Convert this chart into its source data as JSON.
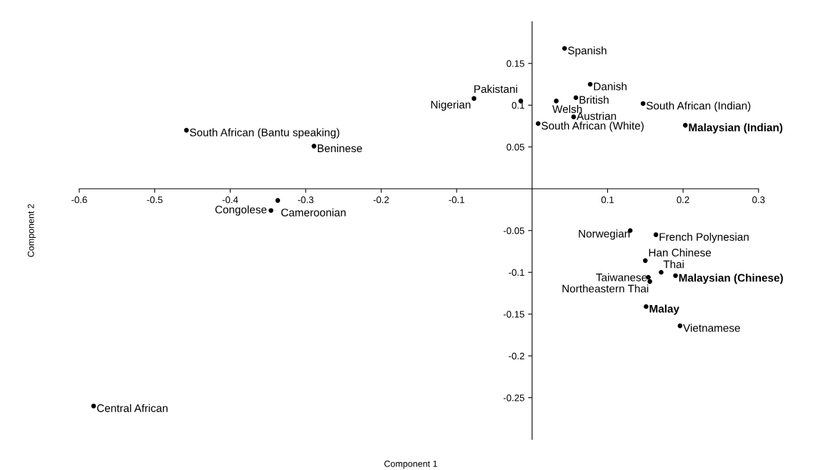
{
  "chart_data": {
    "type": "scatter",
    "xlabel": "Component 1",
    "ylabel": "Component 2",
    "xlim": [
      -0.6,
      0.3
    ],
    "ylim": [
      -0.3,
      0.2
    ],
    "xticks": [
      -0.6,
      -0.5,
      -0.4,
      -0.3,
      -0.2,
      -0.1,
      0.1,
      0.2,
      0.3
    ],
    "yticks": [
      -0.25,
      -0.2,
      -0.15,
      -0.1,
      -0.05,
      0.05,
      0.1,
      0.15
    ],
    "grid": false,
    "legend": false,
    "marker": "circle",
    "series": [
      {
        "color": "#000000",
        "x": [
          0.043,
          0.077,
          -0.015,
          -0.077,
          0.032,
          0.058,
          0.147,
          0.055,
          0.008,
          -0.458,
          -0.289,
          -0.337,
          -0.346,
          -0.581,
          0.13,
          0.164,
          0.15,
          0.171,
          0.154,
          0.156,
          0.196
        ],
        "values": [
          0.168,
          0.125,
          0.105,
          0.108,
          0.105,
          0.109,
          0.102,
          0.086,
          0.078,
          0.07,
          0.051,
          -0.014,
          -0.026,
          -0.26,
          -0.05,
          -0.055,
          -0.086,
          -0.1,
          -0.106,
          -0.111,
          -0.164
        ]
      },
      {
        "color": "#000000",
        "x": [
          0.203,
          0.19,
          0.151
        ],
        "values": [
          0.076,
          -0.104,
          -0.141
        ]
      }
    ],
    "annotations": [
      {
        "text": "Spanish",
        "x": 0.043,
        "y": 0.168
      },
      {
        "text": "Danish",
        "x": 0.077,
        "y": 0.125
      },
      {
        "text": "Pakistani",
        "x": -0.015,
        "y": 0.105
      },
      {
        "text": "Nigerian",
        "x": -0.077,
        "y": 0.108
      },
      {
        "text": "Welsh",
        "x": 0.032,
        "y": 0.105
      },
      {
        "text": "British",
        "x": 0.058,
        "y": 0.109
      },
      {
        "text": "South African (Indian)",
        "x": 0.147,
        "y": 0.102
      },
      {
        "text": "Austrian",
        "x": 0.055,
        "y": 0.086
      },
      {
        "text": "South African (White)",
        "x": 0.008,
        "y": 0.078
      },
      {
        "text": "South African (Bantu speaking)",
        "x": -0.458,
        "y": 0.07
      },
      {
        "text": "Beninese",
        "x": -0.289,
        "y": 0.051
      },
      {
        "text": "Cameroonian",
        "x": -0.337,
        "y": -0.014
      },
      {
        "text": "Congolese",
        "x": -0.346,
        "y": -0.026
      },
      {
        "text": "Central African",
        "x": -0.581,
        "y": -0.26
      },
      {
        "text": "Norwegian",
        "x": 0.13,
        "y": -0.05
      },
      {
        "text": "French Polynesian",
        "x": 0.164,
        "y": -0.055
      },
      {
        "text": "Han Chinese",
        "x": 0.15,
        "y": -0.086
      },
      {
        "text": "Thai",
        "x": 0.171,
        "y": -0.1
      },
      {
        "text": "Taiwanese",
        "x": 0.154,
        "y": -0.106
      },
      {
        "text": "Northeastern Thai",
        "x": 0.156,
        "y": -0.111
      },
      {
        "text": "Vietnamese",
        "x": 0.196,
        "y": -0.164
      },
      {
        "text": "Malaysian (Indian)",
        "x": 0.203,
        "y": 0.076
      },
      {
        "text": "Malaysian (Chinese)",
        "x": 0.19,
        "y": -0.104
      },
      {
        "text": "Malay",
        "x": 0.151,
        "y": -0.141
      }
    ]
  }
}
